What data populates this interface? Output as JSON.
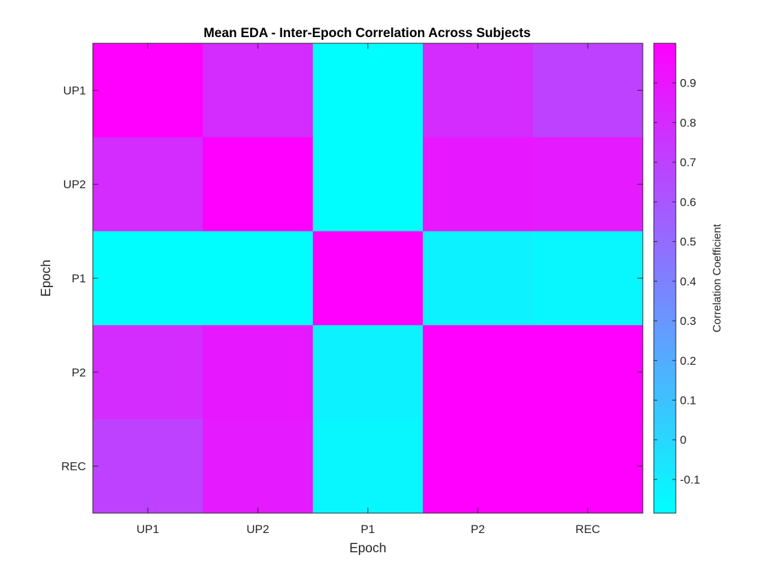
{
  "chart_data": {
    "type": "heatmap",
    "title": "Mean EDA - Inter-Epoch Correlation Across Subjects",
    "xlabel": "Epoch",
    "ylabel": "Epoch",
    "x_categories": [
      "UP1",
      "UP2",
      "P1",
      "P2",
      "REC"
    ],
    "y_categories": [
      "UP1",
      "UP2",
      "P1",
      "P2",
      "REC"
    ],
    "values": [
      [
        1.0,
        0.8,
        -0.18,
        0.8,
        0.7
      ],
      [
        0.8,
        1.0,
        -0.18,
        0.89,
        0.88
      ],
      [
        -0.18,
        -0.18,
        1.0,
        -0.13,
        -0.15
      ],
      [
        0.8,
        0.89,
        -0.13,
        1.0,
        1.0
      ],
      [
        0.7,
        0.88,
        -0.15,
        1.0,
        1.0
      ]
    ],
    "colormap": "cool",
    "colormap_low": "#00ffff",
    "colormap_high": "#ff00ff",
    "clim": [
      -0.185,
      1.0
    ],
    "colorbar": {
      "label": "Correlation Coefficient",
      "ticks": [
        -0.1,
        0,
        0.1,
        0.2,
        0.3,
        0.4,
        0.5,
        0.6,
        0.7,
        0.8,
        0.9
      ],
      "tick_labels": [
        "-0.1",
        "0",
        "0.1",
        "0.2",
        "0.3",
        "0.4",
        "0.5",
        "0.6",
        "0.7",
        "0.8",
        "0.9"
      ],
      "placement": "right"
    },
    "grid": false
  }
}
